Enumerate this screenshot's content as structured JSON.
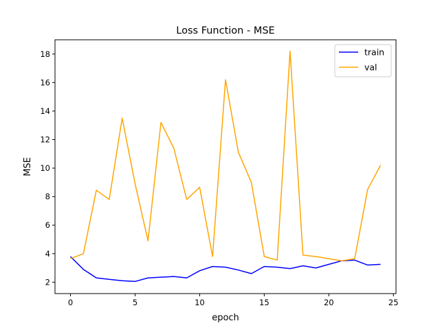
{
  "chart_data": {
    "type": "line",
    "title": "Loss Function - MSE",
    "xlabel": "epoch",
    "ylabel": "MSE",
    "xlim": [
      -1.2,
      25.2
    ],
    "ylim": [
      1.2,
      19.0
    ],
    "xticks": [
      0,
      5,
      10,
      15,
      20,
      25
    ],
    "yticks": [
      2,
      4,
      6,
      8,
      10,
      12,
      14,
      16,
      18
    ],
    "grid": false,
    "legend_position": "top-right",
    "x": [
      0,
      1,
      2,
      3,
      4,
      5,
      6,
      7,
      8,
      9,
      10,
      11,
      12,
      13,
      14,
      15,
      16,
      17,
      18,
      19,
      20,
      21,
      22,
      23,
      24
    ],
    "series": [
      {
        "name": "train",
        "color": "#0000ff",
        "values": [
          3.8,
          2.9,
          2.3,
          2.2,
          2.1,
          2.05,
          2.3,
          2.35,
          2.4,
          2.3,
          2.8,
          3.1,
          3.05,
          2.85,
          2.6,
          3.1,
          3.05,
          2.95,
          3.15,
          3.0,
          3.25,
          3.5,
          3.55,
          3.2,
          3.25
        ]
      },
      {
        "name": "val",
        "color": "#ffa500",
        "values": [
          3.65,
          4.0,
          8.45,
          7.8,
          13.5,
          8.9,
          4.9,
          13.2,
          11.4,
          7.8,
          8.65,
          3.8,
          16.2,
          11.1,
          9.0,
          3.8,
          3.55,
          18.2,
          3.9,
          3.8,
          3.65,
          3.5,
          3.65,
          8.5,
          10.2
        ]
      }
    ]
  }
}
